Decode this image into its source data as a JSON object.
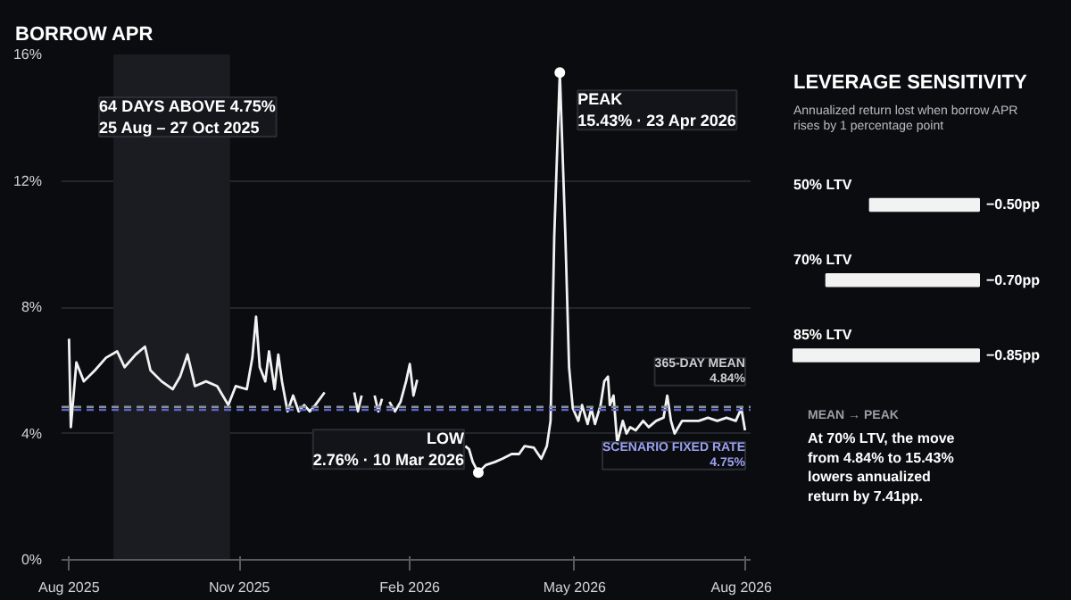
{
  "chart_data": [
    {
      "type": "line",
      "title": "BORROW APR",
      "xlim": [
        "2025-07-28",
        "2026-08-04"
      ],
      "ylim": [
        0,
        16
      ],
      "xticks": [
        {
          "value": "2025-08",
          "label": "Aug 2025"
        },
        {
          "value": "2025-11",
          "label": "Nov 2025"
        },
        {
          "value": "2026-02",
          "label": "Feb 2026"
        },
        {
          "value": "2026-05",
          "label": "May 2026"
        },
        {
          "value": "2026-08",
          "label": "Aug 2026"
        }
      ],
      "yticks": [
        {
          "value": 0,
          "label": "0%"
        },
        {
          "value": 4,
          "label": "4%"
        },
        {
          "value": 8,
          "label": "8%"
        },
        {
          "value": 12,
          "label": "12%"
        },
        {
          "value": 16,
          "label": "16%"
        }
      ],
      "grid": "y",
      "marker": "none",
      "line_style": "solid",
      "bands": [
        {
          "axis": "x",
          "from": "2025-08-25",
          "to": "2025-10-27",
          "label": "64 DAYS ABOVE 4.75%\n25 Aug – 27 Oct 2025",
          "color": "#1a1c22"
        }
      ],
      "ref_lines": [
        {
          "axis": "y",
          "value": 4.84,
          "label": "365-DAY MEAN\n4.84%",
          "color": "#8a8f99",
          "line_style": "dashed"
        },
        {
          "axis": "y",
          "value": 4.75,
          "label": "SCENARIO FIXED RATE\n4.75%",
          "color": "#5b63c4",
          "line_style": "dashed"
        }
      ],
      "annotations": [
        {
          "text": "PEAK\n15.43% · 23 Apr 2026",
          "x": "2026-04-23",
          "y": 15.43
        },
        {
          "text": "LOW\n2.76% · 10 Mar 2026",
          "x": "2026-03-10",
          "y": 2.76
        }
      ],
      "series": [
        {
          "color": "#f2f2f2",
          "x": [
            "2025-08-01",
            "2025-08-02",
            "2025-08-05",
            "2025-08-09",
            "2025-08-15",
            "2025-08-21",
            "2025-08-27",
            "2025-08-31",
            "2025-09-06",
            "2025-09-11",
            "2025-09-14",
            "2025-09-20",
            "2025-09-26",
            "2025-09-30",
            "2025-10-04",
            "2025-10-08",
            "2025-10-14",
            "2025-10-20",
            "2025-10-26",
            "2025-10-30",
            "2025-11-05",
            "2025-11-08",
            "2025-11-10",
            "2025-11-12",
            "2025-11-15",
            "2025-11-17",
            "2025-11-20",
            "2025-11-22",
            "2025-11-24",
            "2025-11-27",
            "2025-11-30",
            "2025-12-03",
            "2025-12-06",
            "2025-12-09",
            "2025-12-12",
            "2025-12-17",
            "2025-12-20",
            "2026-01-02",
            "2026-01-04",
            "2026-01-06",
            "2026-01-09",
            "2026-01-13",
            "2026-01-15",
            "2026-01-17",
            "2026-01-19",
            "2026-01-21",
            "2026-01-24",
            "2026-01-27",
            "2026-01-30",
            "2026-02-01",
            "2026-02-03",
            "2026-02-05",
            "2026-02-20",
            "2026-03-03",
            "2026-03-05",
            "2026-03-07",
            "2026-03-10",
            "2026-03-14",
            "2026-03-19",
            "2026-03-23",
            "2026-03-28",
            "2026-04-01",
            "2026-04-04",
            "2026-04-09",
            "2026-04-13",
            "2026-04-16",
            "2026-04-18",
            "2026-04-20",
            "2026-04-23",
            "2026-04-26",
            "2026-04-28",
            "2026-04-30",
            "2026-05-03",
            "2026-05-05",
            "2026-05-08",
            "2026-05-10",
            "2026-05-12",
            "2026-05-15",
            "2026-05-17",
            "2026-05-19",
            "2026-05-20",
            "2026-05-22",
            "2026-05-24",
            "2026-05-27",
            "2026-05-29",
            "2026-05-31",
            "2026-06-03",
            "2026-06-07",
            "2026-06-10",
            "2026-06-14",
            "2026-06-18",
            "2026-06-20",
            "2026-06-22",
            "2026-06-24",
            "2026-06-28",
            "2026-07-02",
            "2026-07-07",
            "2026-07-12",
            "2026-07-17",
            "2026-07-22",
            "2026-07-27",
            "2026-07-30",
            "2026-08-01"
          ],
          "values": [
            7.0,
            4.2,
            6.25,
            5.65,
            6.0,
            6.4,
            6.6,
            6.1,
            6.5,
            6.75,
            6.0,
            5.65,
            5.4,
            5.8,
            6.5,
            5.5,
            5.65,
            5.5,
            4.9,
            5.5,
            5.4,
            6.4,
            7.7,
            6.1,
            5.65,
            6.6,
            5.4,
            6.5,
            5.65,
            4.7,
            5.2,
            4.7,
            4.9,
            4.7,
            4.9,
            5.3,
            null,
            5.3,
            4.7,
            5.2,
            null,
            5.2,
            4.7,
            5.1,
            null,
            5.0,
            4.7,
            5.0,
            5.65,
            6.2,
            5.2,
            5.7,
            null,
            3.6,
            3.5,
            3.1,
            2.76,
            3.0,
            3.1,
            3.2,
            3.35,
            3.35,
            3.6,
            3.55,
            3.2,
            3.6,
            4.4,
            10.25,
            15.43,
            10.25,
            6.1,
            4.8,
            4.4,
            4.9,
            4.3,
            4.8,
            4.3,
            4.9,
            5.65,
            5.8,
            4.9,
            5.2,
            3.7,
            4.4,
            4.0,
            4.2,
            4.1,
            4.4,
            4.2,
            4.4,
            4.5,
            5.2,
            4.4,
            4.0,
            4.4,
            4.4,
            4.4,
            4.5,
            4.4,
            4.5,
            4.4,
            4.8,
            4.1
          ]
        }
      ]
    },
    {
      "type": "bar",
      "orientation": "horizontal",
      "title": "LEVERAGE SENSITIVITY",
      "subtitle": "Annualized return lost when borrow APR rises by 1 percentage point",
      "categories": [
        "50% LTV",
        "70% LTV",
        "85% LTV"
      ],
      "values": [
        -0.5,
        -0.7,
        -0.85
      ],
      "value_labels": [
        "−0.50pp",
        "−0.70pp",
        "−0.85pp"
      ],
      "color": "#f2f2f2",
      "annotations": [
        "MEAN → PEAK",
        "At 70% LTV, the move from 4.84% to 15.43% lowers annualized return by 7.41pp."
      ]
    }
  ]
}
